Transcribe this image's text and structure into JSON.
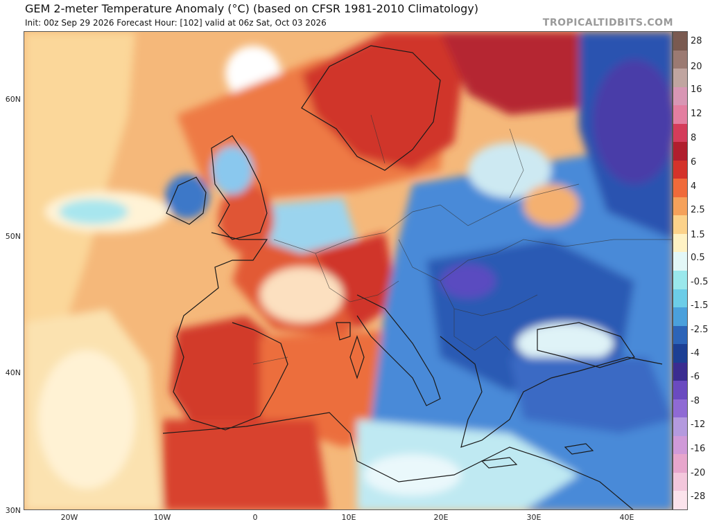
{
  "header": {
    "title": "GEM 2-meter Temperature Anomaly (°C) (based on CFSR 1981-2010 Climatology)",
    "subtitle": "Init: 00z Sep 29 2026   Forecast Hour: [102]   valid at 06z Sat, Oct 03 2026",
    "brand": "TROPICALTIDBITS.COM"
  },
  "map": {
    "lat_labels": [
      "60N",
      "50N",
      "40N",
      "30N"
    ],
    "lon_labels": [
      "20W",
      "10W",
      "0",
      "10E",
      "20E",
      "30E",
      "40E"
    ]
  },
  "colorbar": {
    "labels": [
      "28",
      "20",
      "16",
      "12",
      "8",
      "6",
      "4",
      "2.5",
      "1.5",
      "0.5",
      "-0.5",
      "-1.5",
      "-2.5",
      "-4",
      "-6",
      "-8",
      "-12",
      "-16",
      "-20",
      "-28"
    ],
    "colors": [
      "#7a5a50",
      "#9b7a72",
      "#c0a5a0",
      "#d896b4",
      "#e37ea0",
      "#d43c5a",
      "#b01e2d",
      "#d4322a",
      "#f06a3a",
      "#f5a15a",
      "#fcd28a",
      "#fff2c4",
      "#e3f7f7",
      "#9ae8ec",
      "#6ccde8",
      "#4aa0dc",
      "#2c64b8",
      "#1c3f94",
      "#3a2c90",
      "#6a4ac0",
      "#8f6ad4",
      "#b49ade",
      "#d09ad8",
      "#e7a6cc",
      "#f3c7dc",
      "#fbe3ec"
    ]
  }
}
